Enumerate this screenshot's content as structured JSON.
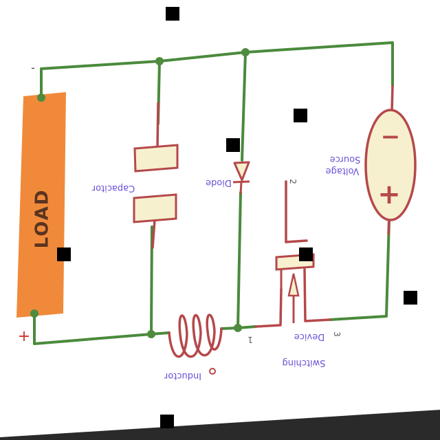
{
  "diagram": {
    "load_label": "LOAD",
    "load_plus": "+",
    "load_minus": "-",
    "capacitor_label": "Capacitor",
    "diode_label": "Diode",
    "inductor_label": "Inductor",
    "source_label_line1": "Voltage",
    "source_label_line2": "Source",
    "source_minus": "−",
    "source_plus": "+",
    "switch_label_line1": "Device",
    "switch_label_line2": "Switching",
    "pin_1": "1",
    "pin_2": "2",
    "pin_3": "3"
  },
  "colors": {
    "wire_green": "#4a8a3c",
    "wire_red": "#b5484a",
    "node_green": "#4f8b3f",
    "load_fill": "#f08a3a",
    "component_fill": "#f7f0cf",
    "label_text": "#6a4fd6"
  }
}
